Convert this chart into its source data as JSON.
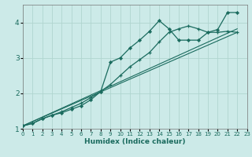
{
  "xlabel": "Humidex (Indice chaleur)",
  "xlim": [
    0,
    23
  ],
  "ylim": [
    1.0,
    4.5
  ],
  "xticks": [
    0,
    1,
    2,
    3,
    4,
    5,
    6,
    7,
    8,
    9,
    10,
    11,
    12,
    13,
    14,
    15,
    16,
    17,
    18,
    19,
    20,
    21,
    22,
    23
  ],
  "yticks": [
    1,
    2,
    3,
    4
  ],
  "bg_color": "#cceae8",
  "grid_color": "#b0d5d0",
  "line_color": "#1a6b5e",
  "curve1_x": [
    0,
    1,
    2,
    3,
    4,
    5,
    6,
    7,
    8,
    9,
    10,
    11,
    12,
    13,
    14,
    15,
    16,
    17,
    18,
    19,
    20,
    21,
    22
  ],
  "curve1_y": [
    1.08,
    1.15,
    1.28,
    1.38,
    1.48,
    1.6,
    1.72,
    1.88,
    2.05,
    2.25,
    2.5,
    2.75,
    2.95,
    3.15,
    3.45,
    3.72,
    3.82,
    3.9,
    3.82,
    3.72,
    3.72,
    3.75,
    3.72
  ],
  "curve2_x": [
    0,
    1,
    2,
    3,
    4,
    5,
    6,
    7,
    8,
    9,
    10,
    11,
    12,
    13,
    14,
    15,
    16,
    17,
    18,
    19,
    20,
    21,
    22
  ],
  "curve2_y": [
    1.08,
    1.15,
    1.28,
    1.38,
    1.45,
    1.55,
    1.65,
    1.82,
    2.05,
    2.88,
    3.0,
    3.28,
    3.5,
    3.75,
    4.05,
    3.82,
    3.5,
    3.5,
    3.5,
    3.72,
    3.8,
    4.28,
    4.28
  ],
  "line3_x": [
    0,
    22
  ],
  "line3_y": [
    1.08,
    3.72
  ],
  "line4_x": [
    0,
    22
  ],
  "line4_y": [
    1.08,
    3.82
  ]
}
